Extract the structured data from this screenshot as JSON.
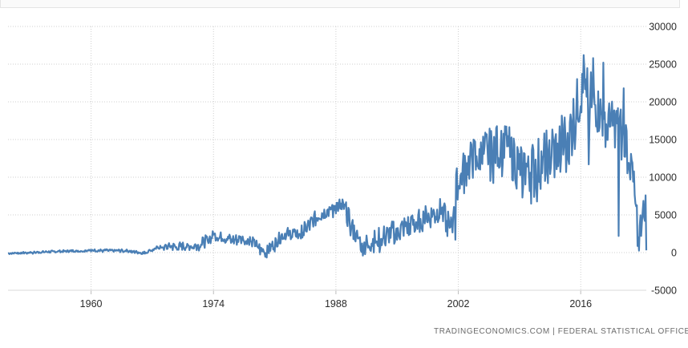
{
  "chart_data": {
    "type": "line",
    "title": "",
    "xlabel": "",
    "ylabel": "",
    "color": "#4a7fb5",
    "grid": true,
    "ylim": [
      -5000,
      30000
    ],
    "xlim": [
      1950.5,
      2023.5
    ],
    "x_ticks": [
      1960,
      1974,
      1988,
      2002,
      2016
    ],
    "y_ticks": [
      -5000,
      0,
      5000,
      10000,
      15000,
      20000,
      25000,
      30000
    ],
    "y_tick_labels": [
      "-5000",
      "0",
      "5000",
      "10000",
      "15000",
      "20000",
      "25000",
      "30000"
    ],
    "series": [
      {
        "name": "",
        "trend": [
          [
            1950.5,
            -100
          ],
          [
            1956,
            150
          ],
          [
            1960,
            300
          ],
          [
            1964,
            250
          ],
          [
            1966,
            -50
          ],
          [
            1968,
            800
          ],
          [
            1972,
            900
          ],
          [
            1974,
            2300
          ],
          [
            1976,
            1800
          ],
          [
            1978,
            1800
          ],
          [
            1980,
            0
          ],
          [
            1982,
            2500
          ],
          [
            1984,
            2700
          ],
          [
            1986,
            5000
          ],
          [
            1988,
            6300
          ],
          [
            1989,
            6000
          ],
          [
            1990,
            3000
          ],
          [
            1991,
            900
          ],
          [
            1994,
            2500
          ],
          [
            1996,
            3500
          ],
          [
            1998,
            4500
          ],
          [
            2000,
            5500
          ],
          [
            2001,
            3500
          ],
          [
            2002,
            10000
          ],
          [
            2004,
            13000
          ],
          [
            2006,
            13500
          ],
          [
            2007,
            15000
          ],
          [
            2008,
            13000
          ],
          [
            2010,
            11000
          ],
          [
            2012,
            12500
          ],
          [
            2014,
            15000
          ],
          [
            2015,
            17000
          ],
          [
            2016,
            21000
          ],
          [
            2017,
            21000
          ],
          [
            2018,
            19000
          ],
          [
            2019,
            17000
          ],
          [
            2020,
            17000
          ],
          [
            2021,
            16000
          ],
          [
            2021.8,
            12000
          ],
          [
            2022.2,
            7000
          ],
          [
            2022.6,
            1000
          ],
          [
            2023,
            5000
          ]
        ],
        "amplitude": [
          [
            1950.5,
            120
          ],
          [
            1967,
            200
          ],
          [
            1970,
            600
          ],
          [
            1982,
            800
          ],
          [
            1986,
            1000
          ],
          [
            1990,
            1300
          ],
          [
            2000,
            1800
          ],
          [
            2002,
            2500
          ],
          [
            2006,
            3200
          ],
          [
            2015,
            4000
          ],
          [
            2021,
            3000
          ],
          [
            2023,
            2500
          ]
        ],
        "dips": [
          [
            2001.7,
            1700
          ],
          [
            2009.3,
            7300
          ],
          [
            2016.9,
            11700
          ],
          [
            2020.3,
            2200
          ]
        ],
        "peaks": [
          [
            2016.3,
            26200
          ],
          [
            2017.4,
            25800
          ],
          [
            2018.6,
            25200
          ],
          [
            2020.9,
            21800
          ]
        ]
      }
    ]
  },
  "footer": {
    "source": "TRADINGECONOMICS.COM  |  FEDERAL STATISTICAL OFFICE"
  }
}
